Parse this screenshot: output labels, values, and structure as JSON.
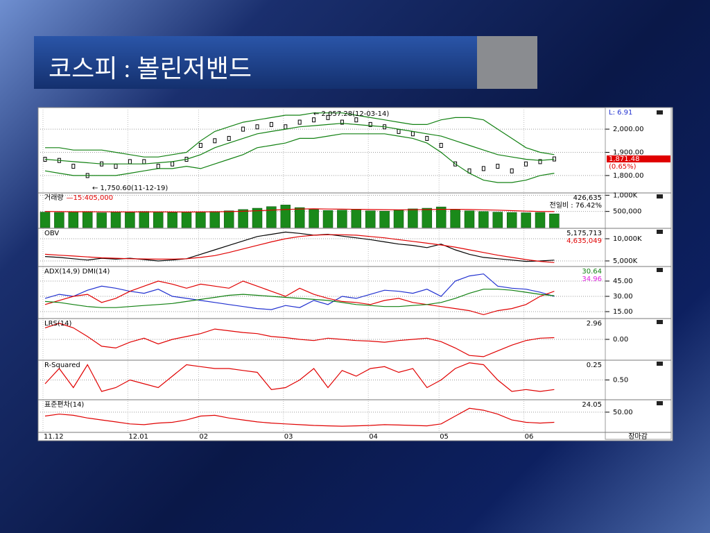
{
  "slide": {
    "title": "코스피 : 볼린저밴드"
  },
  "chart_data": [
    {
      "type": "line",
      "annotations": [
        "← 2,057.28(12-03-14)",
        "← 1,750.60(11-12-19)"
      ],
      "low_label": "L: 6.91",
      "last_label": "1,871.48",
      "change_label": "(0.65%)",
      "ylim": [
        1728,
        2084
      ],
      "yticks": [
        {
          "value": 2000,
          "label": "2,000.00"
        },
        {
          "value": 1900,
          "label": "1,900.00"
        },
        {
          "value": 1800,
          "label": "1,800.00"
        }
      ],
      "grid": true,
      "series": [
        {
          "color": "#000000",
          "style": "points",
          "values": [
            1870,
            1865,
            1840,
            1800,
            1850,
            1840,
            1860,
            1860,
            1840,
            1850,
            1870,
            1930,
            1950,
            1960,
            2000,
            2010,
            2020,
            2010,
            2030,
            2040,
            2050,
            2030,
            2040,
            2020,
            2010,
            1990,
            1980,
            1960,
            1930,
            1850,
            1820,
            1830,
            1840,
            1820,
            1850,
            1860,
            1871.48
          ]
        },
        {
          "color": "#108010",
          "values": [
            1920,
            1920,
            1910,
            1910,
            1910,
            1900,
            1890,
            1880,
            1880,
            1890,
            1900,
            1950,
            1990,
            2010,
            2030,
            2040,
            2050,
            2060,
            2060,
            2070,
            2070,
            2070,
            2060,
            2050,
            2040,
            2030,
            2020,
            2020,
            2040,
            2050,
            2050,
            2040,
            2000,
            1960,
            1920,
            1900,
            1890
          ]
        },
        {
          "color": "#108010",
          "values": [
            1870,
            1865,
            1860,
            1855,
            1850,
            1850,
            1850,
            1850,
            1855,
            1860,
            1870,
            1890,
            1920,
            1940,
            1960,
            1980,
            1990,
            2000,
            2010,
            2015,
            2020,
            2025,
            2020,
            2015,
            2010,
            2000,
            1990,
            1980,
            1970,
            1950,
            1930,
            1910,
            1890,
            1880,
            1870,
            1865,
            1870
          ]
        },
        {
          "color": "#108010",
          "values": [
            1820,
            1810,
            1800,
            1800,
            1800,
            1800,
            1810,
            1820,
            1830,
            1830,
            1840,
            1830,
            1850,
            1870,
            1890,
            1920,
            1930,
            1940,
            1960,
            1960,
            1970,
            1980,
            1980,
            1980,
            1980,
            1970,
            1960,
            1940,
            1900,
            1850,
            1810,
            1780,
            1770,
            1770,
            1780,
            1800,
            1810
          ]
        }
      ]
    },
    {
      "type": "bar",
      "title": "거래량",
      "title_note": "—15:405,000",
      "readouts": [
        {
          "text": "426,635",
          "color": "#000000"
        },
        {
          "text": "전일비 : 76.42%",
          "color": "#000000"
        }
      ],
      "ylim": [
        0,
        1050000
      ],
      "yticks": [
        {
          "value": 1000000,
          "label": "1,000K"
        },
        {
          "value": 500000,
          "label": "500,000"
        }
      ],
      "grid": true,
      "color": "#1a8a1a",
      "values": [
        480000,
        470000,
        490000,
        500000,
        460000,
        480000,
        470000,
        500000,
        490000,
        470000,
        480000,
        490000,
        500000,
        520000,
        560000,
        600000,
        650000,
        700000,
        620000,
        560000,
        530000,
        540000,
        570000,
        520000,
        510000,
        540000,
        580000,
        600000,
        640000,
        560000,
        520000,
        500000,
        480000,
        470000,
        460000,
        470000,
        426635
      ],
      "series": [
        {
          "color": "#e00000",
          "values": [
            500000,
            495000,
            490000,
            490000,
            488000,
            486000,
            484000,
            485000,
            486000,
            484000,
            483000,
            485000,
            488000,
            495000,
            505000,
            520000,
            540000,
            560000,
            575000,
            580000,
            575000,
            570000,
            565000,
            560000,
            555000,
            550000,
            552000,
            558000,
            565000,
            565000,
            560000,
            550000,
            540000,
            525000,
            510000,
            500000,
            495000
          ]
        }
      ]
    },
    {
      "type": "line",
      "title": "OBV",
      "readouts": [
        {
          "text": "5,175,713",
          "color": "#000000"
        },
        {
          "text": "4,635,049",
          "color": "#e00000"
        }
      ],
      "ylim": [
        3900000,
        12190000
      ],
      "yticks": [
        {
          "value": 10000000,
          "label": "10,000K"
        },
        {
          "value": 5000000,
          "label": "5,000K"
        }
      ],
      "grid": true,
      "series": [
        {
          "color": "#000000",
          "values": [
            6000000,
            5800000,
            5500000,
            5200000,
            5600000,
            5400000,
            5600000,
            5300000,
            5000000,
            5200000,
            5500000,
            6500000,
            7500000,
            8500000,
            9500000,
            10500000,
            11000000,
            11500000,
            11200000,
            10800000,
            11000000,
            10600000,
            10200000,
            9800000,
            9300000,
            8800000,
            8500000,
            8000000,
            8800000,
            7500000,
            6500000,
            5800000,
            5500000,
            5200000,
            4900000,
            5000000,
            5175713
          ]
        },
        {
          "color": "#e00000",
          "values": [
            6500000,
            6300000,
            6100000,
            5900000,
            5700000,
            5600000,
            5500000,
            5450000,
            5400000,
            5400000,
            5500000,
            5800000,
            6200000,
            6900000,
            7700000,
            8500000,
            9300000,
            10000000,
            10500000,
            10800000,
            10900000,
            10900000,
            10800000,
            10500000,
            10200000,
            9800000,
            9400000,
            9000000,
            8600000,
            8100000,
            7500000,
            6900000,
            6300000,
            5800000,
            5300000,
            4900000,
            4635049
          ]
        }
      ]
    },
    {
      "type": "line",
      "title": "ADX(14,9) DMI(14)",
      "readouts": [
        {
          "text": "30.64",
          "color": "#108010"
        },
        {
          "text": "34.96",
          "color": "#e020e0"
        }
      ],
      "ylim": [
        8.9,
        58.6
      ],
      "yticks": [
        {
          "value": 45,
          "label": "45.00"
        },
        {
          "value": 30,
          "label": "30.00"
        },
        {
          "value": 15,
          "label": "15.00"
        }
      ],
      "grid": true,
      "series": [
        {
          "color": "#2030d0",
          "values": [
            28,
            32,
            30,
            36,
            40,
            38,
            35,
            33,
            37,
            30,
            28,
            26,
            24,
            22,
            20,
            18,
            17,
            21,
            19,
            26,
            22,
            30,
            28,
            32,
            36,
            35,
            33,
            37,
            30,
            45,
            50,
            52,
            40,
            38,
            37,
            34,
            30
          ]
        },
        {
          "color": "#e00000",
          "values": [
            22,
            26,
            30,
            32,
            24,
            28,
            35,
            40,
            45,
            42,
            38,
            42,
            40,
            38,
            45,
            40,
            35,
            30,
            38,
            32,
            28,
            25,
            24,
            22,
            26,
            28,
            24,
            22,
            20,
            18,
            16,
            12,
            16,
            18,
            22,
            30,
            34.96
          ]
        },
        {
          "color": "#108010",
          "values": [
            25,
            24,
            22,
            20,
            19,
            19,
            20,
            21,
            22,
            23,
            25,
            27,
            29,
            31,
            32,
            31,
            30,
            29,
            28,
            27,
            26,
            24,
            22,
            21,
            20,
            20,
            21,
            22,
            24,
            28,
            33,
            37,
            37,
            36,
            34,
            32,
            30.64
          ]
        }
      ]
    },
    {
      "type": "line",
      "title": "LRS(14)",
      "readouts": [
        {
          "text": "2.96",
          "color": "#000000"
        }
      ],
      "ylim": [
        -35,
        35
      ],
      "yticks": [
        {
          "value": 0,
          "label": "0.00"
        }
      ],
      "grid": true,
      "series": [
        {
          "color": "#e00000",
          "values": [
            20,
            28,
            20,
            5,
            -12,
            -15,
            -5,
            2,
            -8,
            0,
            5,
            10,
            18,
            15,
            12,
            10,
            5,
            3,
            0,
            -2,
            2,
            0,
            -2,
            -3,
            -5,
            -2,
            0,
            2,
            -4,
            -15,
            -28,
            -30,
            -20,
            -10,
            -2,
            2,
            2.96
          ]
        }
      ]
    },
    {
      "type": "line",
      "title": "R-Squared",
      "readouts": [
        {
          "text": "0.25",
          "color": "#000000"
        }
      ],
      "ylim": [
        0,
        1
      ],
      "yticks": [
        {
          "value": 0.5,
          "label": "0.50"
        }
      ],
      "grid": true,
      "series": [
        {
          "color": "#e00000",
          "values": [
            0.4,
            0.8,
            0.3,
            0.9,
            0.2,
            0.3,
            0.5,
            0.4,
            0.3,
            0.6,
            0.9,
            0.85,
            0.8,
            0.8,
            0.75,
            0.7,
            0.25,
            0.3,
            0.5,
            0.8,
            0.3,
            0.75,
            0.6,
            0.8,
            0.85,
            0.7,
            0.8,
            0.3,
            0.5,
            0.8,
            0.95,
            0.9,
            0.5,
            0.2,
            0.25,
            0.2,
            0.25
          ]
        }
      ]
    },
    {
      "type": "line",
      "title": "표준편차(14)",
      "readouts": [
        {
          "text": "24.05",
          "color": "#000000"
        }
      ],
      "ylim": [
        0,
        80
      ],
      "yticks": [
        {
          "value": 50,
          "label": "50.00"
        }
      ],
      "grid": true,
      "series": [
        {
          "color": "#e00000",
          "values": [
            40,
            45,
            42,
            35,
            30,
            25,
            20,
            18,
            22,
            24,
            30,
            40,
            42,
            35,
            30,
            25,
            22,
            20,
            18,
            16,
            15,
            14,
            15,
            16,
            18,
            17,
            16,
            15,
            20,
            40,
            60,
            55,
            45,
            30,
            24,
            22,
            24.05
          ]
        }
      ],
      "categories": [
        "11.12",
        null,
        null,
        null,
        null,
        null,
        "12.01",
        null,
        null,
        null,
        null,
        "02",
        null,
        null,
        null,
        null,
        null,
        "03",
        null,
        null,
        null,
        null,
        null,
        "04",
        null,
        null,
        null,
        null,
        "05",
        null,
        null,
        null,
        null,
        null,
        "06",
        null,
        null
      ],
      "closing_label": "장마감"
    }
  ]
}
